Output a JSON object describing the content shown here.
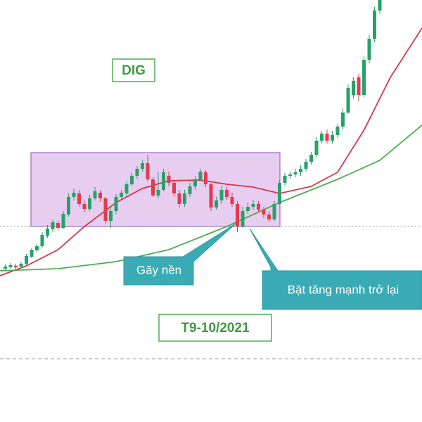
{
  "chart_data": {
    "type": "candlestick",
    "annotations": [
      "DIG",
      "Gãy nền",
      "Bật tăng mạnh trở lại",
      "T9-10/2021"
    ],
    "xlim": [
      -1,
      79
    ],
    "ylim": [
      20,
      80
    ],
    "up_color": "#26a269",
    "down_color": "#e23b4e",
    "open": [
      41.8,
      42.0,
      42.2,
      42.1,
      42.5,
      43.5,
      44.4,
      45.0,
      46.5,
      47.4,
      48.3,
      47.6,
      49.5,
      52.0,
      52.5,
      51.0,
      50.3,
      51.8,
      52.6,
      51.8,
      48.6,
      50.0,
      52.0,
      52.5,
      53.8,
      55.0,
      56.0,
      56.8,
      54.5,
      52.2,
      53.0,
      55.0,
      54.0,
      52.5,
      51.0,
      52.4,
      53.5,
      54.5,
      55.5,
      53.8,
      50.5,
      51.5,
      53.0,
      52.0,
      51.0,
      47.8,
      50.0,
      50.6,
      51.0,
      50.2,
      49.5,
      48.8,
      51.0,
      54.0,
      55.0,
      55.2,
      55.5,
      56.0,
      57.0,
      58.0,
      60.0,
      61.0,
      60.0,
      60.8,
      62.0,
      64.0,
      66.5,
      69.0,
      66.5,
      71.5,
      74.5,
      78.5
    ],
    "high": [
      42.4,
      42.6,
      42.5,
      42.8,
      43.9,
      44.8,
      45.4,
      47.0,
      48.0,
      48.8,
      48.6,
      50.0,
      52.5,
      53.2,
      53.0,
      51.5,
      52.3,
      53.4,
      53.0,
      52.0,
      50.5,
      52.4,
      53.0,
      54.2,
      55.4,
      56.4,
      57.2,
      58.0,
      54.8,
      55.5,
      56.0,
      55.6,
      54.4,
      53.0,
      53.0,
      54.0,
      55.0,
      56.0,
      55.8,
      54.0,
      52.0,
      53.6,
      53.4,
      52.6,
      51.4,
      50.6,
      51.2,
      51.6,
      51.4,
      50.6,
      50.0,
      51.4,
      54.4,
      55.4,
      55.6,
      56.0,
      56.5,
      57.4,
      58.4,
      60.5,
      61.4,
      61.6,
      61.4,
      62.4,
      64.6,
      68.0,
      69.0,
      69.5,
      72.0,
      75.0,
      79.0,
      81.5
    ],
    "low": [
      41.5,
      41.8,
      41.7,
      41.9,
      42.3,
      43.3,
      44.2,
      44.8,
      46.2,
      47.0,
      47.2,
      47.4,
      49.2,
      51.5,
      50.6,
      49.8,
      50.0,
      51.5,
      51.3,
      48.2,
      47.6,
      49.6,
      51.5,
      52.2,
      53.5,
      54.6,
      55.6,
      54.2,
      52.0,
      51.8,
      52.8,
      53.5,
      52.0,
      50.5,
      50.6,
      52.0,
      53.0,
      54.2,
      53.4,
      50.0,
      50.2,
      51.0,
      51.6,
      50.6,
      47.0,
      47.6,
      49.6,
      50.2,
      49.8,
      49.0,
      48.4,
      48.6,
      50.8,
      53.6,
      54.6,
      54.8,
      55.0,
      55.6,
      56.6,
      57.6,
      59.6,
      59.6,
      59.6,
      60.4,
      61.6,
      63.8,
      66.0,
      65.6,
      66.2,
      71.0,
      74.0,
      78.0
    ],
    "close": [
      42.1,
      42.3,
      42.0,
      42.5,
      43.6,
      44.5,
      45.0,
      46.6,
      47.5,
      48.4,
      47.6,
      49.6,
      52.0,
      52.6,
      51.0,
      50.3,
      51.8,
      52.8,
      51.8,
      48.6,
      50.0,
      52.0,
      52.6,
      53.8,
      55.0,
      56.0,
      56.8,
      54.5,
      52.2,
      53.0,
      55.5,
      54.0,
      52.5,
      51.0,
      52.5,
      53.5,
      54.5,
      55.6,
      53.8,
      50.5,
      51.5,
      53.0,
      52.0,
      51.0,
      47.8,
      50.0,
      50.6,
      51.0,
      50.2,
      49.5,
      48.8,
      51.0,
      54.0,
      55.0,
      55.2,
      55.5,
      56.0,
      57.0,
      58.0,
      60.0,
      61.0,
      60.0,
      60.8,
      62.0,
      64.0,
      67.5,
      68.5,
      66.5,
      71.5,
      74.5,
      78.5,
      81.0
    ],
    "series": [
      {
        "color": "#d9364a",
        "x": [
          -1,
          4,
          10,
          15,
          21,
          26,
          31,
          37,
          42,
          47,
          52,
          58,
          63,
          68,
          73,
          79
        ],
        "values": [
          40.8,
          42.2,
          44.5,
          47.8,
          51.2,
          53.2,
          54.3,
          54.4,
          53.8,
          53.4,
          52.5,
          53.5,
          55.5,
          61.5,
          69.0,
          76.0
        ]
      },
      {
        "color": "#4caf50",
        "x": [
          -1,
          10,
          21,
          31,
          42,
          52,
          63,
          71,
          79
        ],
        "values": [
          41.5,
          41.8,
          42.8,
          44.5,
          47.8,
          51.2,
          54.5,
          57.2,
          62.2
        ]
      }
    ]
  }
}
